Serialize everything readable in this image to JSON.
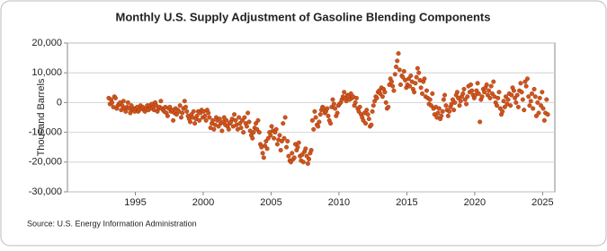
{
  "chart_data": {
    "type": "scatter",
    "title": "Monthly U.S. Supply Adjustment of Gasoline Blending Components",
    "ylabel": "Thousand Barrels",
    "source": "Source: U.S. Energy Information Administration",
    "color": "#d2541b",
    "grid": true,
    "xlim": [
      1990,
      2025.9
    ],
    "xticks": [
      1995,
      2000,
      2005,
      2010,
      2015,
      2020,
      2025
    ],
    "ylim": [
      -30000,
      20000
    ],
    "yticks": [
      {
        "value": -30000,
        "label": "-30,000"
      },
      {
        "value": -20000,
        "label": "-20,000"
      },
      {
        "value": -10000,
        "label": "-10,000"
      },
      0,
      {
        "value": 10000,
        "label": "10,000"
      },
      {
        "value": 20000,
        "label": "20,000"
      }
    ],
    "x": [
      1993.04,
      1993.13,
      1993.21,
      1993.29,
      1993.38,
      1993.46,
      1993.54,
      1993.63,
      1993.71,
      1993.79,
      1993.88,
      1993.96,
      1994.04,
      1994.13,
      1994.21,
      1994.29,
      1994.38,
      1994.46,
      1994.54,
      1994.63,
      1994.71,
      1994.79,
      1994.88,
      1994.96,
      1995.04,
      1995.13,
      1995.21,
      1995.29,
      1995.38,
      1995.46,
      1995.54,
      1995.63,
      1995.71,
      1995.79,
      1995.88,
      1995.96,
      1996.04,
      1996.13,
      1996.21,
      1996.29,
      1996.38,
      1996.46,
      1996.54,
      1996.63,
      1996.71,
      1996.79,
      1996.88,
      1996.96,
      1997.04,
      1997.13,
      1997.21,
      1997.29,
      1997.38,
      1997.46,
      1997.54,
      1997.63,
      1997.71,
      1997.79,
      1997.88,
      1997.96,
      1998.04,
      1998.13,
      1998.21,
      1998.29,
      1998.38,
      1998.46,
      1998.54,
      1998.63,
      1998.71,
      1998.79,
      1998.88,
      1998.96,
      1999.04,
      1999.13,
      1999.21,
      1999.29,
      1999.38,
      1999.46,
      1999.54,
      1999.63,
      1999.71,
      1999.79,
      1999.88,
      1999.96,
      2000.04,
      2000.13,
      2000.21,
      2000.29,
      2000.38,
      2000.46,
      2000.54,
      2000.63,
      2000.71,
      2000.79,
      2000.88,
      2000.96,
      2001.04,
      2001.13,
      2001.21,
      2001.29,
      2001.38,
      2001.46,
      2001.54,
      2001.63,
      2001.71,
      2001.79,
      2001.88,
      2001.96,
      2002.04,
      2002.13,
      2002.21,
      2002.29,
      2002.38,
      2002.46,
      2002.54,
      2002.63,
      2002.71,
      2002.79,
      2002.88,
      2002.96,
      2003.04,
      2003.13,
      2003.21,
      2003.29,
      2003.38,
      2003.46,
      2003.54,
      2003.63,
      2003.71,
      2003.79,
      2003.88,
      2003.96,
      2004.04,
      2004.13,
      2004.21,
      2004.29,
      2004.38,
      2004.46,
      2004.54,
      2004.63,
      2004.71,
      2004.79,
      2004.88,
      2004.96,
      2005.04,
      2005.13,
      2005.21,
      2005.29,
      2005.38,
      2005.46,
      2005.54,
      2005.63,
      2005.71,
      2005.79,
      2005.88,
      2005.96,
      2006.04,
      2006.13,
      2006.21,
      2006.29,
      2006.38,
      2006.46,
      2006.54,
      2006.63,
      2006.71,
      2006.79,
      2006.88,
      2006.96,
      2007.04,
      2007.13,
      2007.21,
      2007.29,
      2007.38,
      2007.46,
      2007.54,
      2007.63,
      2007.71,
      2007.79,
      2007.88,
      2007.96,
      2008.04,
      2008.13,
      2008.21,
      2008.29,
      2008.38,
      2008.46,
      2008.54,
      2008.63,
      2008.71,
      2008.79,
      2008.88,
      2008.96,
      2009.04,
      2009.13,
      2009.21,
      2009.29,
      2009.38,
      2009.46,
      2009.54,
      2009.63,
      2009.71,
      2009.79,
      2009.88,
      2009.96,
      2010.04,
      2010.13,
      2010.21,
      2010.29,
      2010.38,
      2010.46,
      2010.54,
      2010.63,
      2010.71,
      2010.79,
      2010.88,
      2010.96,
      2011.04,
      2011.13,
      2011.21,
      2011.29,
      2011.38,
      2011.46,
      2011.54,
      2011.63,
      2011.71,
      2011.79,
      2011.88,
      2011.96,
      2012.04,
      2012.13,
      2012.21,
      2012.29,
      2012.38,
      2012.46,
      2012.54,
      2012.63,
      2012.71,
      2012.79,
      2012.88,
      2012.96,
      2013.04,
      2013.13,
      2013.21,
      2013.29,
      2013.38,
      2013.46,
      2013.54,
      2013.63,
      2013.71,
      2013.79,
      2013.88,
      2013.96,
      2014.04,
      2014.13,
      2014.21,
      2014.29,
      2014.38,
      2014.46,
      2014.54,
      2014.63,
      2014.71,
      2014.79,
      2014.88,
      2014.96,
      2015.04,
      2015.13,
      2015.21,
      2015.29,
      2015.38,
      2015.46,
      2015.54,
      2015.63,
      2015.71,
      2015.79,
      2015.88,
      2015.96,
      2016.04,
      2016.13,
      2016.21,
      2016.29,
      2016.38,
      2016.46,
      2016.54,
      2016.63,
      2016.71,
      2016.79,
      2016.88,
      2016.96,
      2017.04,
      2017.13,
      2017.21,
      2017.29,
      2017.38,
      2017.46,
      2017.54,
      2017.63,
      2017.71,
      2017.79,
      2017.88,
      2017.96,
      2018.04,
      2018.13,
      2018.21,
      2018.29,
      2018.38,
      2018.46,
      2018.54,
      2018.63,
      2018.71,
      2018.79,
      2018.88,
      2018.96,
      2019.04,
      2019.13,
      2019.21,
      2019.29,
      2019.38,
      2019.46,
      2019.54,
      2019.63,
      2019.71,
      2019.79,
      2019.88,
      2019.96,
      2020.04,
      2020.13,
      2020.21,
      2020.29,
      2020.38,
      2020.46,
      2020.54,
      2020.63,
      2020.71,
      2020.79,
      2020.88,
      2020.96,
      2021.04,
      2021.13,
      2021.21,
      2021.29,
      2021.38,
      2021.46,
      2021.54,
      2021.63,
      2021.71,
      2021.79,
      2021.88,
      2021.96,
      2022.04,
      2022.13,
      2022.21,
      2022.29,
      2022.38,
      2022.46,
      2022.54,
      2022.63,
      2022.71,
      2022.79,
      2022.88,
      2022.96,
      2023.04,
      2023.13,
      2023.21,
      2023.29,
      2023.38,
      2023.46,
      2023.54,
      2023.63,
      2023.71,
      2023.79,
      2023.88,
      2023.96,
      2024.04,
      2024.13,
      2024.21,
      2024.29,
      2024.38,
      2024.46,
      2024.54,
      2024.63,
      2024.71,
      2024.79,
      2024.88,
      2024.96,
      2025.04,
      2025.13,
      2025.21,
      2025.29,
      2025.38
    ],
    "values": [
      1500,
      -500,
      1000,
      0,
      -1500,
      2000,
      1500,
      -2000,
      -1000,
      -500,
      0,
      -2500,
      -1000,
      500,
      -2000,
      -3000,
      -1500,
      0,
      -2000,
      -3500,
      -1000,
      -2500,
      -2000,
      -3000,
      -2000,
      -1500,
      -3000,
      -2500,
      -1000,
      -2000,
      -1500,
      -2500,
      -3000,
      -2000,
      -1000,
      -2500,
      -1000,
      -2000,
      -500,
      -1500,
      -2500,
      0,
      -1000,
      -3000,
      -2000,
      -1500,
      500,
      -2000,
      -2500,
      -3000,
      -1500,
      -3500,
      -4500,
      -2000,
      -1500,
      -3000,
      -2500,
      -6000,
      -3500,
      -2000,
      -4000,
      -2500,
      -3000,
      -1000,
      -5000,
      -3500,
      -2000,
      500,
      -1500,
      -3000,
      -4500,
      -5500,
      -6500,
      -4000,
      -5000,
      -3000,
      -7000,
      -5500,
      -4500,
      -3000,
      -6000,
      -3500,
      -2500,
      -5000,
      -3000,
      -4500,
      -6000,
      -2500,
      -3500,
      -5000,
      -8500,
      -7000,
      -6000,
      -9000,
      -7500,
      -5000,
      -6000,
      -8000,
      -5500,
      -7000,
      -9500,
      -6500,
      -5000,
      -7500,
      -6000,
      -8000,
      -9000,
      -7000,
      -6500,
      -5500,
      -8000,
      -4000,
      -6000,
      -7500,
      -9000,
      -5000,
      -7000,
      -8500,
      -6000,
      -10000,
      -5000,
      -7000,
      -8000,
      -3500,
      -6500,
      -9500,
      -11000,
      -12000,
      -10000,
      -8500,
      -7000,
      -9000,
      -6000,
      -10000,
      -14000,
      -15000,
      -17000,
      -18500,
      -14500,
      -13000,
      -15500,
      -12000,
      -10000,
      -11000,
      -8000,
      -9500,
      -12000,
      -10000,
      -9000,
      -14000,
      -12500,
      -11000,
      -16000,
      -13000,
      -7000,
      -12000,
      -5000,
      -15000,
      -13000,
      -18000,
      -19500,
      -20000,
      -17000,
      -19000,
      -18500,
      -14000,
      -16000,
      -15000,
      -13500,
      -18000,
      -19500,
      -17500,
      -20000,
      -16500,
      -15500,
      -18000,
      -20500,
      -19000,
      -17000,
      -16000,
      -6000,
      -9000,
      -3000,
      -5000,
      -7500,
      -8000,
      -6500,
      -4000,
      -2500,
      -1500,
      -2000,
      -3500,
      -3000,
      -2000,
      -4500,
      -6000,
      -7000,
      -1500,
      1000,
      -500,
      -2000,
      -4500,
      -3500,
      -1000,
      -500,
      0,
      1000,
      2000,
      3500,
      1500,
      500,
      2500,
      2000,
      1000,
      3000,
      1500,
      2000,
      -1000,
      0,
      1500,
      -2000,
      -3000,
      -1500,
      -4000,
      -5000,
      -6000,
      -3500,
      -7000,
      -2500,
      -4000,
      -5500,
      -8000,
      -7500,
      -3000,
      -1000,
      500,
      2000,
      1500,
      3500,
      4000,
      3000,
      5000,
      2000,
      4500,
      3500,
      0,
      -2000,
      -1500,
      6000,
      8000,
      7000,
      5500,
      4000,
      9500,
      12000,
      14000,
      16500,
      11000,
      6000,
      9000,
      8500,
      10500,
      7500,
      5000,
      6000,
      8000,
      5500,
      9000,
      7000,
      4500,
      3500,
      6500,
      8500,
      11500,
      10000,
      7500,
      5000,
      3000,
      7000,
      8000,
      2000,
      4000,
      1500,
      -500,
      1000,
      -1000,
      3000,
      -2000,
      -4000,
      -1500,
      -5000,
      -3500,
      -2000,
      -5500,
      -4500,
      -3000,
      1000,
      2500,
      -1000,
      -2500,
      -4500,
      -3000,
      -1500,
      -500,
      1000,
      -2500,
      0,
      2500,
      3500,
      1500,
      -1000,
      500,
      2000,
      3000,
      4500,
      1000,
      -500,
      2000,
      5500,
      3500,
      6000,
      4000,
      2500,
      1500,
      2500,
      4000,
      6500,
      3000,
      -6500,
      1000,
      2000,
      4500,
      3500,
      5000,
      6000,
      2500,
      4000,
      1500,
      5500,
      3000,
      7000,
      2000,
      0,
      -1000,
      1500,
      3500,
      -2000,
      -4000,
      -3000,
      500,
      -1500,
      2000,
      -500,
      1000,
      3000,
      -1000,
      2500,
      5000,
      4000,
      1500,
      0,
      2500,
      -1500,
      4000,
      6500,
      3500,
      1000,
      -2500,
      7000,
      5500,
      8000,
      2000,
      -1000,
      500,
      3000,
      -2000,
      4500,
      2000,
      -4500,
      0,
      -3500,
      1500,
      -1000,
      3500,
      -2000,
      -6000,
      -3500,
      1000,
      -4000
    ]
  }
}
